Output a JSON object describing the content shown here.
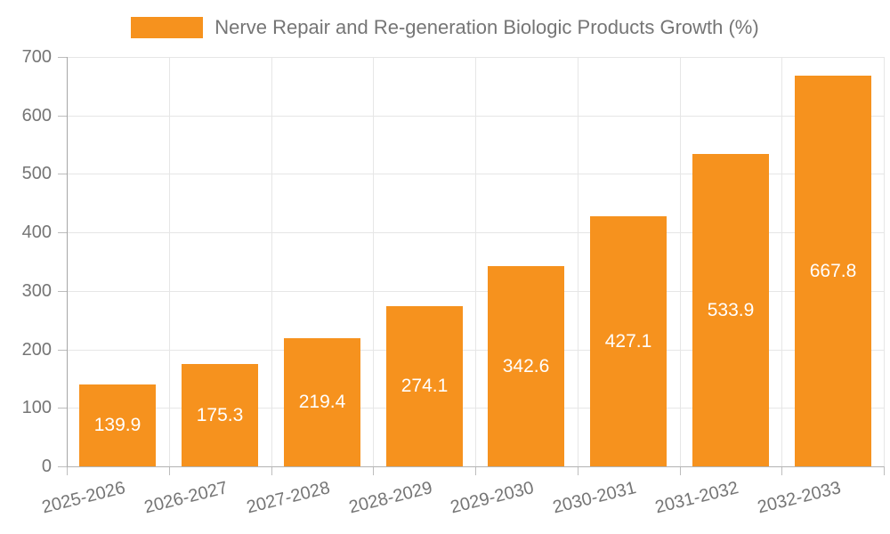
{
  "legend": {
    "label": "Nerve Repair and Re-generation Biologic Products Growth (%)"
  },
  "chart_data": {
    "type": "bar",
    "title": "Nerve Repair and Re-generation Biologic Products Growth (%)",
    "categories": [
      "2025-2026",
      "2026-2027",
      "2027-2028",
      "2028-2029",
      "2029-2030",
      "2030-2031",
      "2031-2032",
      "2032-2033"
    ],
    "values": [
      139.9,
      175.3,
      219.4,
      274.1,
      342.6,
      427.1,
      533.9,
      667.8
    ],
    "value_labels_shown": true,
    "xlabel": "",
    "ylabel": "",
    "ylim": [
      0,
      700
    ],
    "yticks": [
      0,
      100,
      200,
      300,
      400,
      500,
      600,
      700
    ],
    "grid": true,
    "legend_position": "top",
    "colors": {
      "bar": "#f6921e",
      "value_label": "#ffffff",
      "axis_text": "#757575",
      "gridline": "#e6e6e6",
      "axis_line": "#aaaaaa",
      "background": "#ffffff"
    }
  }
}
